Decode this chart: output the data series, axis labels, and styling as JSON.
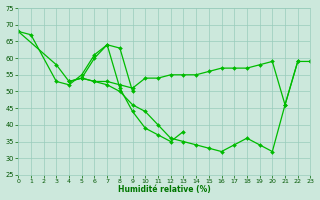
{
  "xlabel": "Humidité relative (%)",
  "background_color": "#cce8dc",
  "grid_color": "#99ccbb",
  "line_color": "#00bb00",
  "marker": "D",
  "markersize": 2.0,
  "linewidth": 0.9,
  "xlim": [
    0,
    23
  ],
  "ylim": [
    25,
    75
  ],
  "yticks": [
    25,
    30,
    35,
    40,
    45,
    50,
    55,
    60,
    65,
    70,
    75
  ],
  "xticks": [
    0,
    1,
    2,
    3,
    4,
    5,
    6,
    7,
    8,
    9,
    10,
    11,
    12,
    13,
    14,
    15,
    16,
    17,
    18,
    19,
    20,
    21,
    22,
    23
  ],
  "series": [
    {
      "x": [
        0,
        1,
        3,
        4,
        5,
        6,
        7,
        8,
        9,
        10,
        11,
        12,
        13
      ],
      "y": [
        68,
        67,
        53,
        52,
        55,
        61,
        64,
        51,
        44,
        39,
        37,
        35,
        38
      ]
    },
    {
      "x": [
        0,
        3,
        4,
        5,
        6,
        7,
        8,
        9
      ],
      "y": [
        68,
        58,
        53,
        54,
        60,
        64,
        63,
        50
      ]
    },
    {
      "x": [
        5,
        6,
        7,
        8,
        9,
        10,
        11,
        12,
        13,
        14,
        15,
        16,
        17,
        18,
        19,
        20,
        21,
        22,
        23
      ],
      "y": [
        54,
        53,
        53,
        52,
        51,
        54,
        54,
        55,
        55,
        55,
        56,
        57,
        57,
        57,
        58,
        59,
        46,
        59,
        59
      ]
    },
    {
      "x": [
        4,
        5,
        6,
        7,
        8,
        9,
        10,
        11,
        12,
        13,
        14,
        15,
        16,
        17,
        18,
        19,
        20,
        21,
        22
      ],
      "y": [
        53,
        54,
        53,
        52,
        50,
        46,
        44,
        40,
        36,
        35,
        34,
        33,
        32,
        34,
        36,
        34,
        32,
        46,
        59
      ]
    }
  ]
}
